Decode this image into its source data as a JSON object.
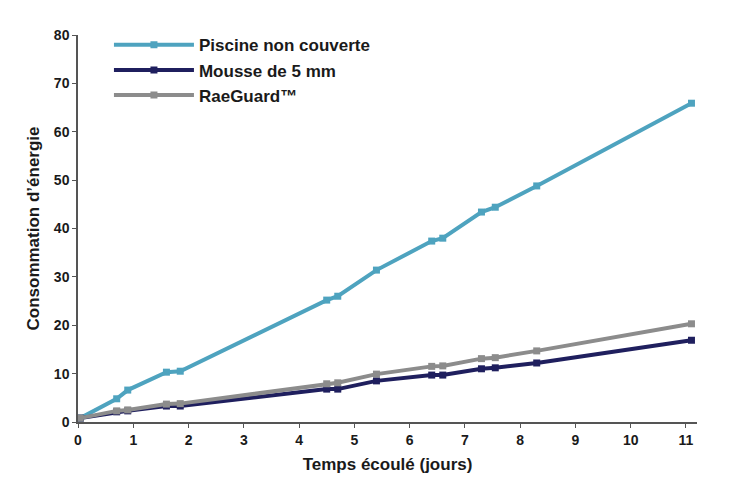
{
  "chart_data": {
    "type": "line",
    "x_label": "Temps écoulé (jours)",
    "y_label": "Consommation d’énergie",
    "x": [
      0.04,
      0.7,
      0.9,
      1.6,
      1.85,
      4.5,
      4.7,
      5.4,
      6.4,
      6.6,
      7.3,
      7.55,
      8.3,
      11.1
    ],
    "series": [
      {
        "name": "Piscine non couverte",
        "color": "#4ea3bf",
        "values": [
          0.8,
          4.8,
          6.6,
          10.3,
          10.5,
          25.2,
          26,
          31.4,
          37.4,
          38,
          43.4,
          44.4,
          48.8,
          65.9
        ]
      },
      {
        "name": "Mousse de 5 mm",
        "color": "#1f1f5e",
        "values": [
          0.8,
          2.1,
          2.3,
          3.3,
          3.3,
          6.8,
          6.8,
          8.5,
          9.7,
          9.7,
          11,
          11.2,
          12.2,
          16.9
        ]
      },
      {
        "name": "RaeGuard™",
        "color": "#8c8c8c",
        "values": [
          0.8,
          2.3,
          2.5,
          3.7,
          3.8,
          7.9,
          8.1,
          9.9,
          11.5,
          11.6,
          13.1,
          13.3,
          14.7,
          20.3
        ]
      }
    ],
    "xlim": [
      0,
      11.2
    ],
    "xticks": [
      0,
      1,
      2,
      3,
      4,
      5,
      6,
      7,
      8,
      9,
      10,
      11
    ],
    "ylim": [
      0,
      80
    ],
    "yticks": [
      0,
      10,
      20,
      30,
      40,
      50,
      60,
      70,
      80
    ],
    "grid": false,
    "legend": "top left",
    "marker": "square"
  }
}
